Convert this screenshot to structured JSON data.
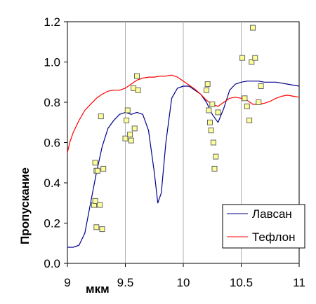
{
  "chart_data": {
    "type": "line",
    "xlabel": "мкм",
    "ylabel": "Пропускание",
    "xlim": [
      9,
      11
    ],
    "ylim": [
      0,
      1.2
    ],
    "xticks": [
      "9",
      "9.5",
      "10",
      "10.5",
      "11"
    ],
    "yticks": [
      "0.0",
      "0.2",
      "0.4",
      "0.6",
      "0.8",
      "1.0",
      "1.2"
    ],
    "grid": "vertical",
    "legend_position": "bottom-right",
    "colors": {
      "lavsan": "#00008b",
      "teflon": "#ff0000",
      "points_fill": "#ffff99",
      "points_stroke": "#666666"
    },
    "series": [
      {
        "name": "Лавсан",
        "x": [
          8.98,
          9.05,
          9.1,
          9.15,
          9.2,
          9.25,
          9.3,
          9.35,
          9.4,
          9.45,
          9.5,
          9.55,
          9.6,
          9.65,
          9.7,
          9.75,
          9.78,
          9.81,
          9.85,
          9.9,
          9.95,
          10.0,
          10.05,
          10.1,
          10.15,
          10.2,
          10.25,
          10.3,
          10.35,
          10.4,
          10.45,
          10.5,
          10.55,
          10.6,
          10.65,
          10.7,
          10.8,
          10.9,
          11.0,
          11.02
        ],
        "y": [
          0.08,
          0.08,
          0.09,
          0.15,
          0.3,
          0.45,
          0.58,
          0.67,
          0.71,
          0.74,
          0.75,
          0.74,
          0.75,
          0.74,
          0.66,
          0.45,
          0.3,
          0.35,
          0.6,
          0.82,
          0.87,
          0.88,
          0.88,
          0.86,
          0.84,
          0.8,
          0.74,
          0.7,
          0.77,
          0.86,
          0.89,
          0.9,
          0.905,
          0.905,
          0.905,
          0.9,
          0.9,
          0.89,
          0.88,
          0.88
        ]
      },
      {
        "name": "Тефлон",
        "x": [
          8.98,
          9.02,
          9.05,
          9.1,
          9.15,
          9.2,
          9.25,
          9.3,
          9.35,
          9.4,
          9.45,
          9.5,
          9.55,
          9.6,
          9.65,
          9.7,
          9.75,
          9.8,
          9.85,
          9.9,
          9.95,
          10.0,
          10.05,
          10.1,
          10.15,
          10.2,
          10.25,
          10.3,
          10.35,
          10.4,
          10.45,
          10.5,
          10.55,
          10.6,
          10.65,
          10.7,
          10.75,
          10.8,
          10.85,
          10.9,
          10.95,
          11.0,
          11.02
        ],
        "y": [
          0.5,
          0.6,
          0.65,
          0.71,
          0.76,
          0.79,
          0.82,
          0.84,
          0.855,
          0.86,
          0.86,
          0.87,
          0.89,
          0.91,
          0.92,
          0.925,
          0.925,
          0.93,
          0.93,
          0.935,
          0.925,
          0.905,
          0.885,
          0.865,
          0.84,
          0.81,
          0.79,
          0.78,
          0.8,
          0.82,
          0.825,
          0.82,
          0.81,
          0.79,
          0.79,
          0.795,
          0.805,
          0.82,
          0.83,
          0.835,
          0.83,
          0.825,
          0.825
        ]
      },
      {
        "name": "",
        "type": "scatter",
        "x": [
          9.23,
          9.24,
          9.24,
          9.25,
          9.25,
          9.26,
          9.28,
          9.29,
          9.3,
          9.31,
          9.5,
          9.51,
          9.52,
          9.54,
          9.55,
          9.57,
          9.58,
          9.6,
          9.61,
          10.2,
          10.21,
          10.22,
          10.23,
          10.24,
          10.25,
          10.26,
          10.27,
          10.28,
          10.3,
          10.51,
          10.53,
          10.55,
          10.57,
          10.59,
          10.6,
          10.62,
          10.65,
          10.67
        ],
        "y": [
          0.29,
          0.31,
          0.5,
          0.18,
          0.46,
          0.46,
          0.29,
          0.73,
          0.17,
          0.47,
          0.62,
          0.71,
          0.76,
          0.64,
          0.61,
          0.87,
          0.67,
          0.93,
          0.86,
          0.86,
          0.89,
          0.76,
          0.7,
          0.66,
          0.79,
          0.6,
          0.47,
          0.53,
          0.75,
          1.02,
          0.82,
          0.78,
          0.71,
          1.0,
          1.17,
          1.02,
          0.8,
          0.88
        ]
      }
    ]
  }
}
